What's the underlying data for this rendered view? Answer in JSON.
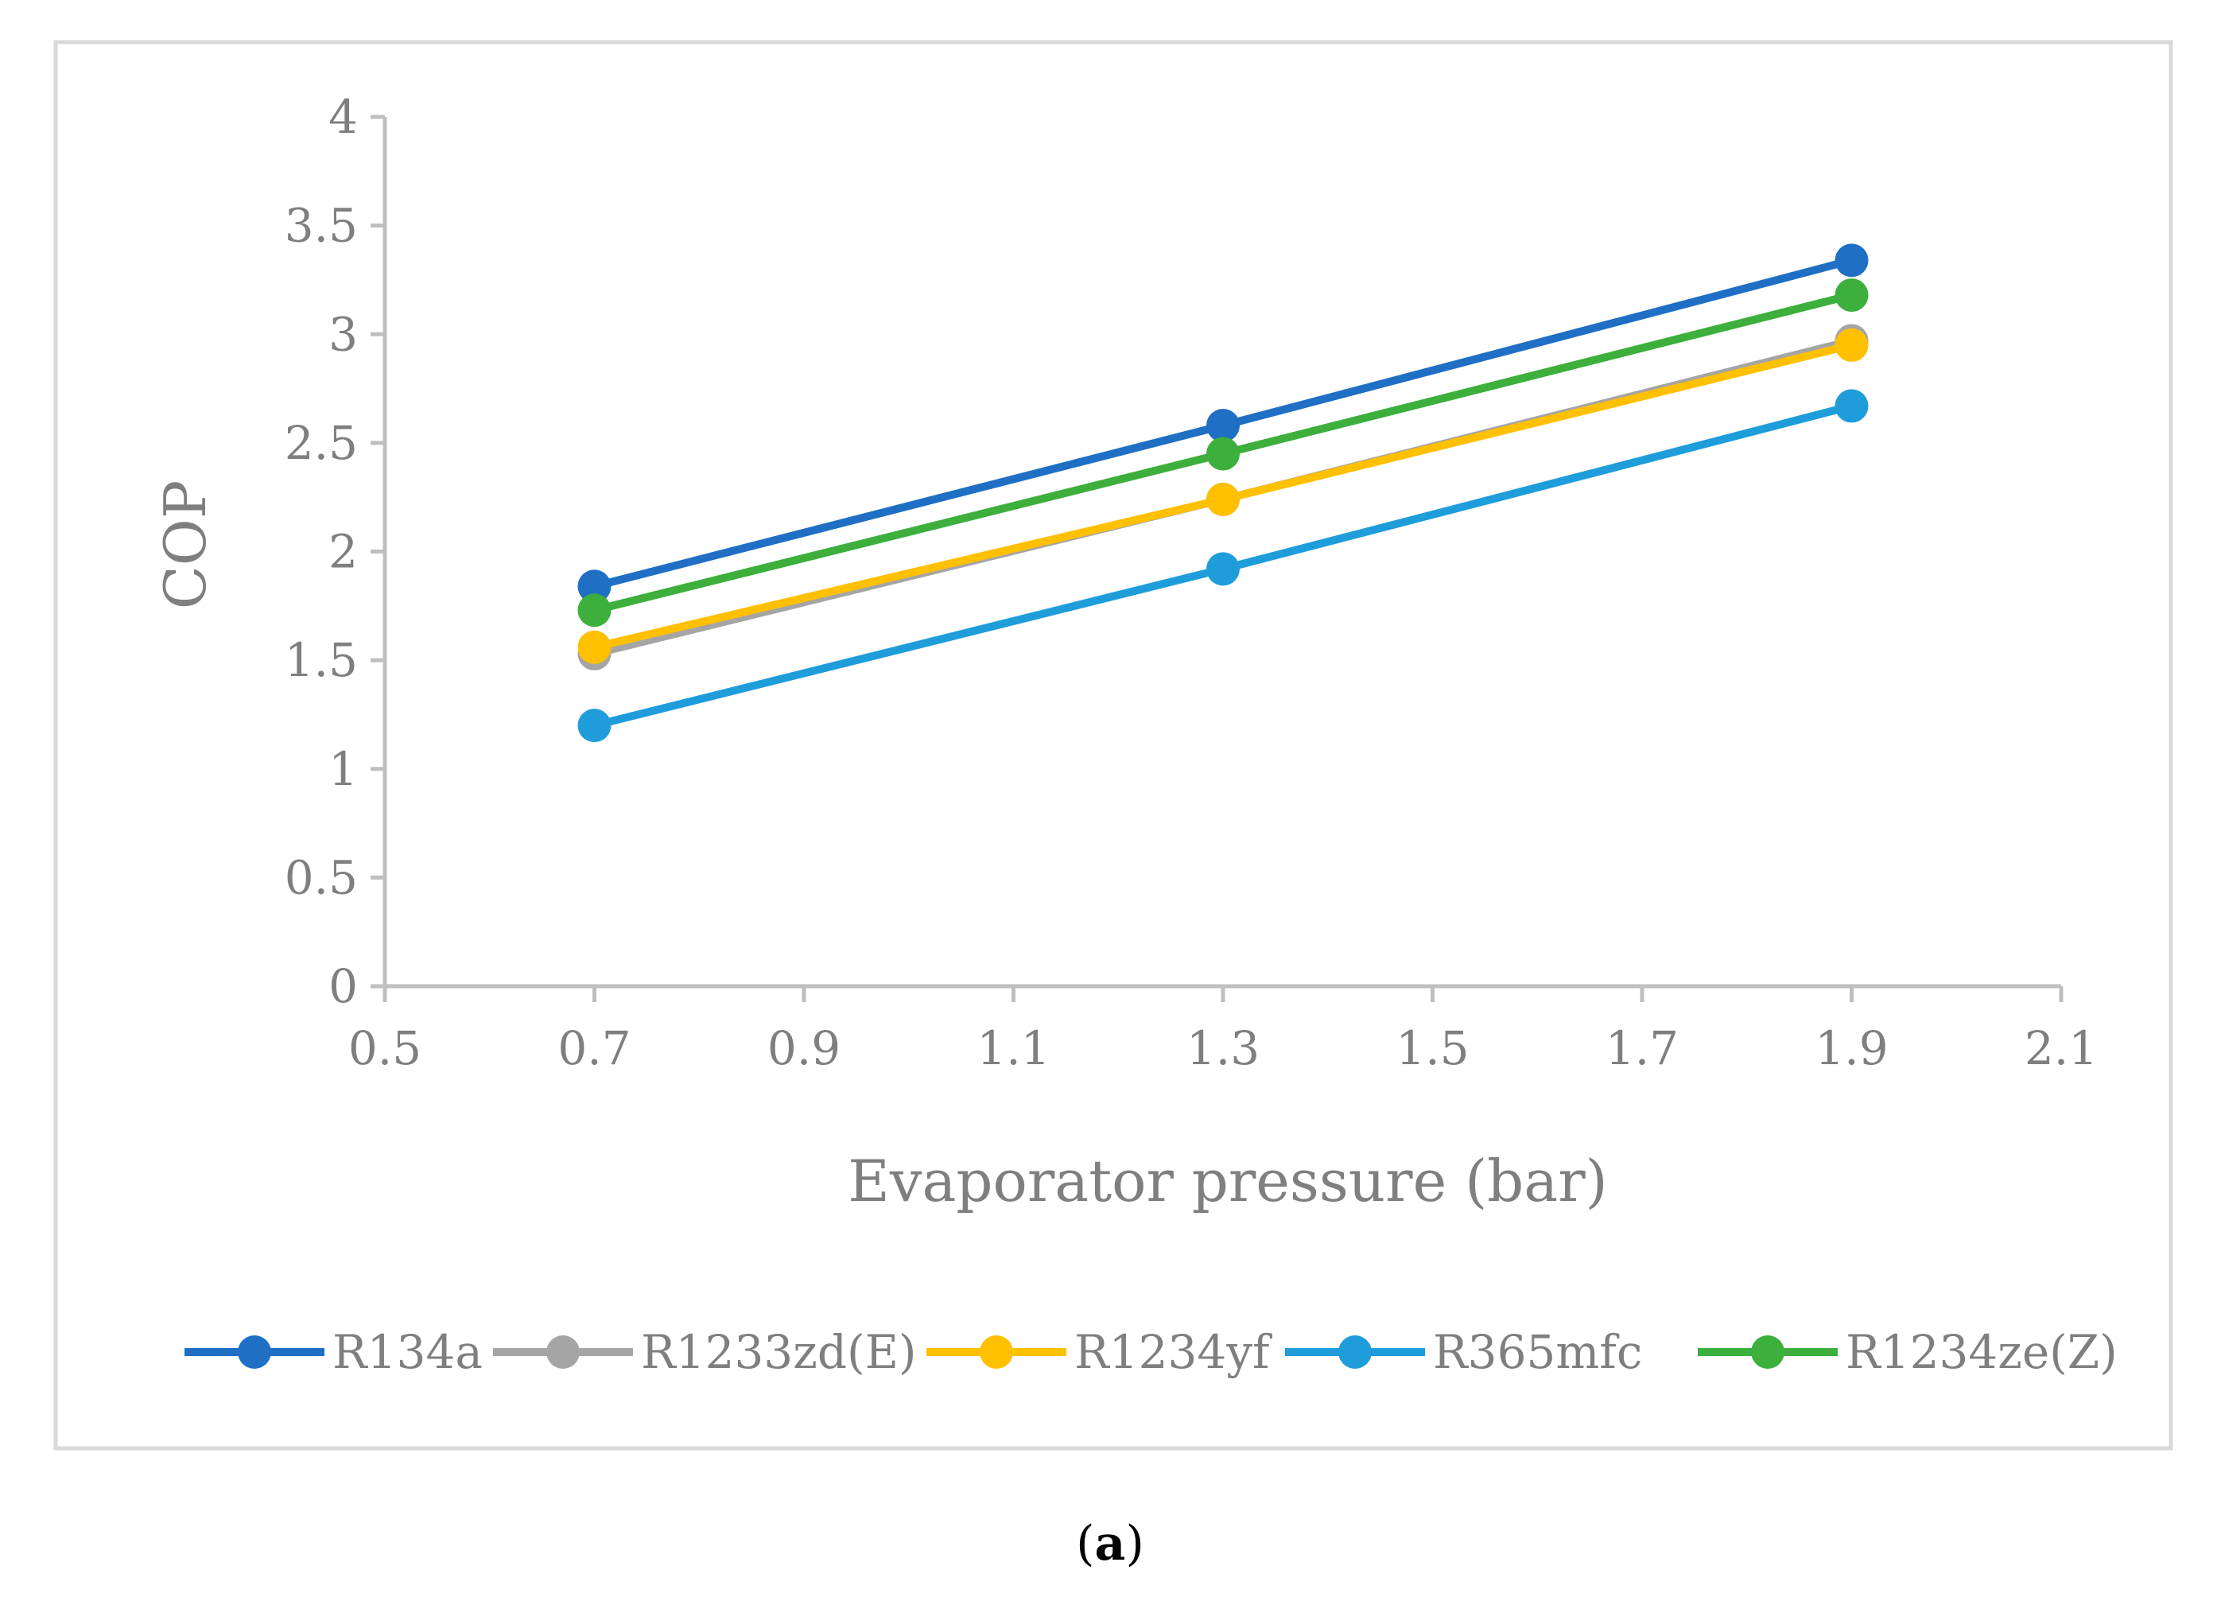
{
  "colors": {
    "frame": "#d9d9d9",
    "axis": "#bfbfbf",
    "text": "#7f7f7f"
  },
  "caption": {
    "open": "(",
    "letter": "a",
    "close": ")"
  },
  "chart_data": {
    "type": "line",
    "title": "",
    "xlabel": "Evaporator pressure (bar)",
    "ylabel": "COP",
    "xlim": [
      0.5,
      2.1
    ],
    "ylim": [
      0,
      4
    ],
    "x_ticks": [
      "0.5",
      "0.7",
      "0.9",
      "1.1",
      "1.3",
      "1.5",
      "1.7",
      "1.9",
      "2.1"
    ],
    "y_ticks": [
      "0",
      "0.5",
      "1",
      "1.5",
      "2",
      "2.5",
      "3",
      "3.5",
      "4"
    ],
    "grid": false,
    "legend_position": "bottom",
    "x": [
      0.7,
      1.3,
      1.9
    ],
    "series": [
      {
        "name": "R134a",
        "color": "#1f6fc5",
        "values": [
          1.84,
          2.58,
          3.34
        ]
      },
      {
        "name": "R1233zd(E)",
        "color": "#a5a5a5",
        "values": [
          1.53,
          2.24,
          2.97
        ]
      },
      {
        "name": "R1234yf",
        "color": "#ffc000",
        "values": [
          1.56,
          2.24,
          2.95
        ]
      },
      {
        "name": "R365mfc",
        "color": "#1f9ddb",
        "values": [
          1.2,
          1.92,
          2.67
        ]
      },
      {
        "name": "R1234ze(Z)",
        "color": "#3caf3c",
        "values": [
          1.73,
          2.45,
          3.18
        ]
      }
    ]
  }
}
